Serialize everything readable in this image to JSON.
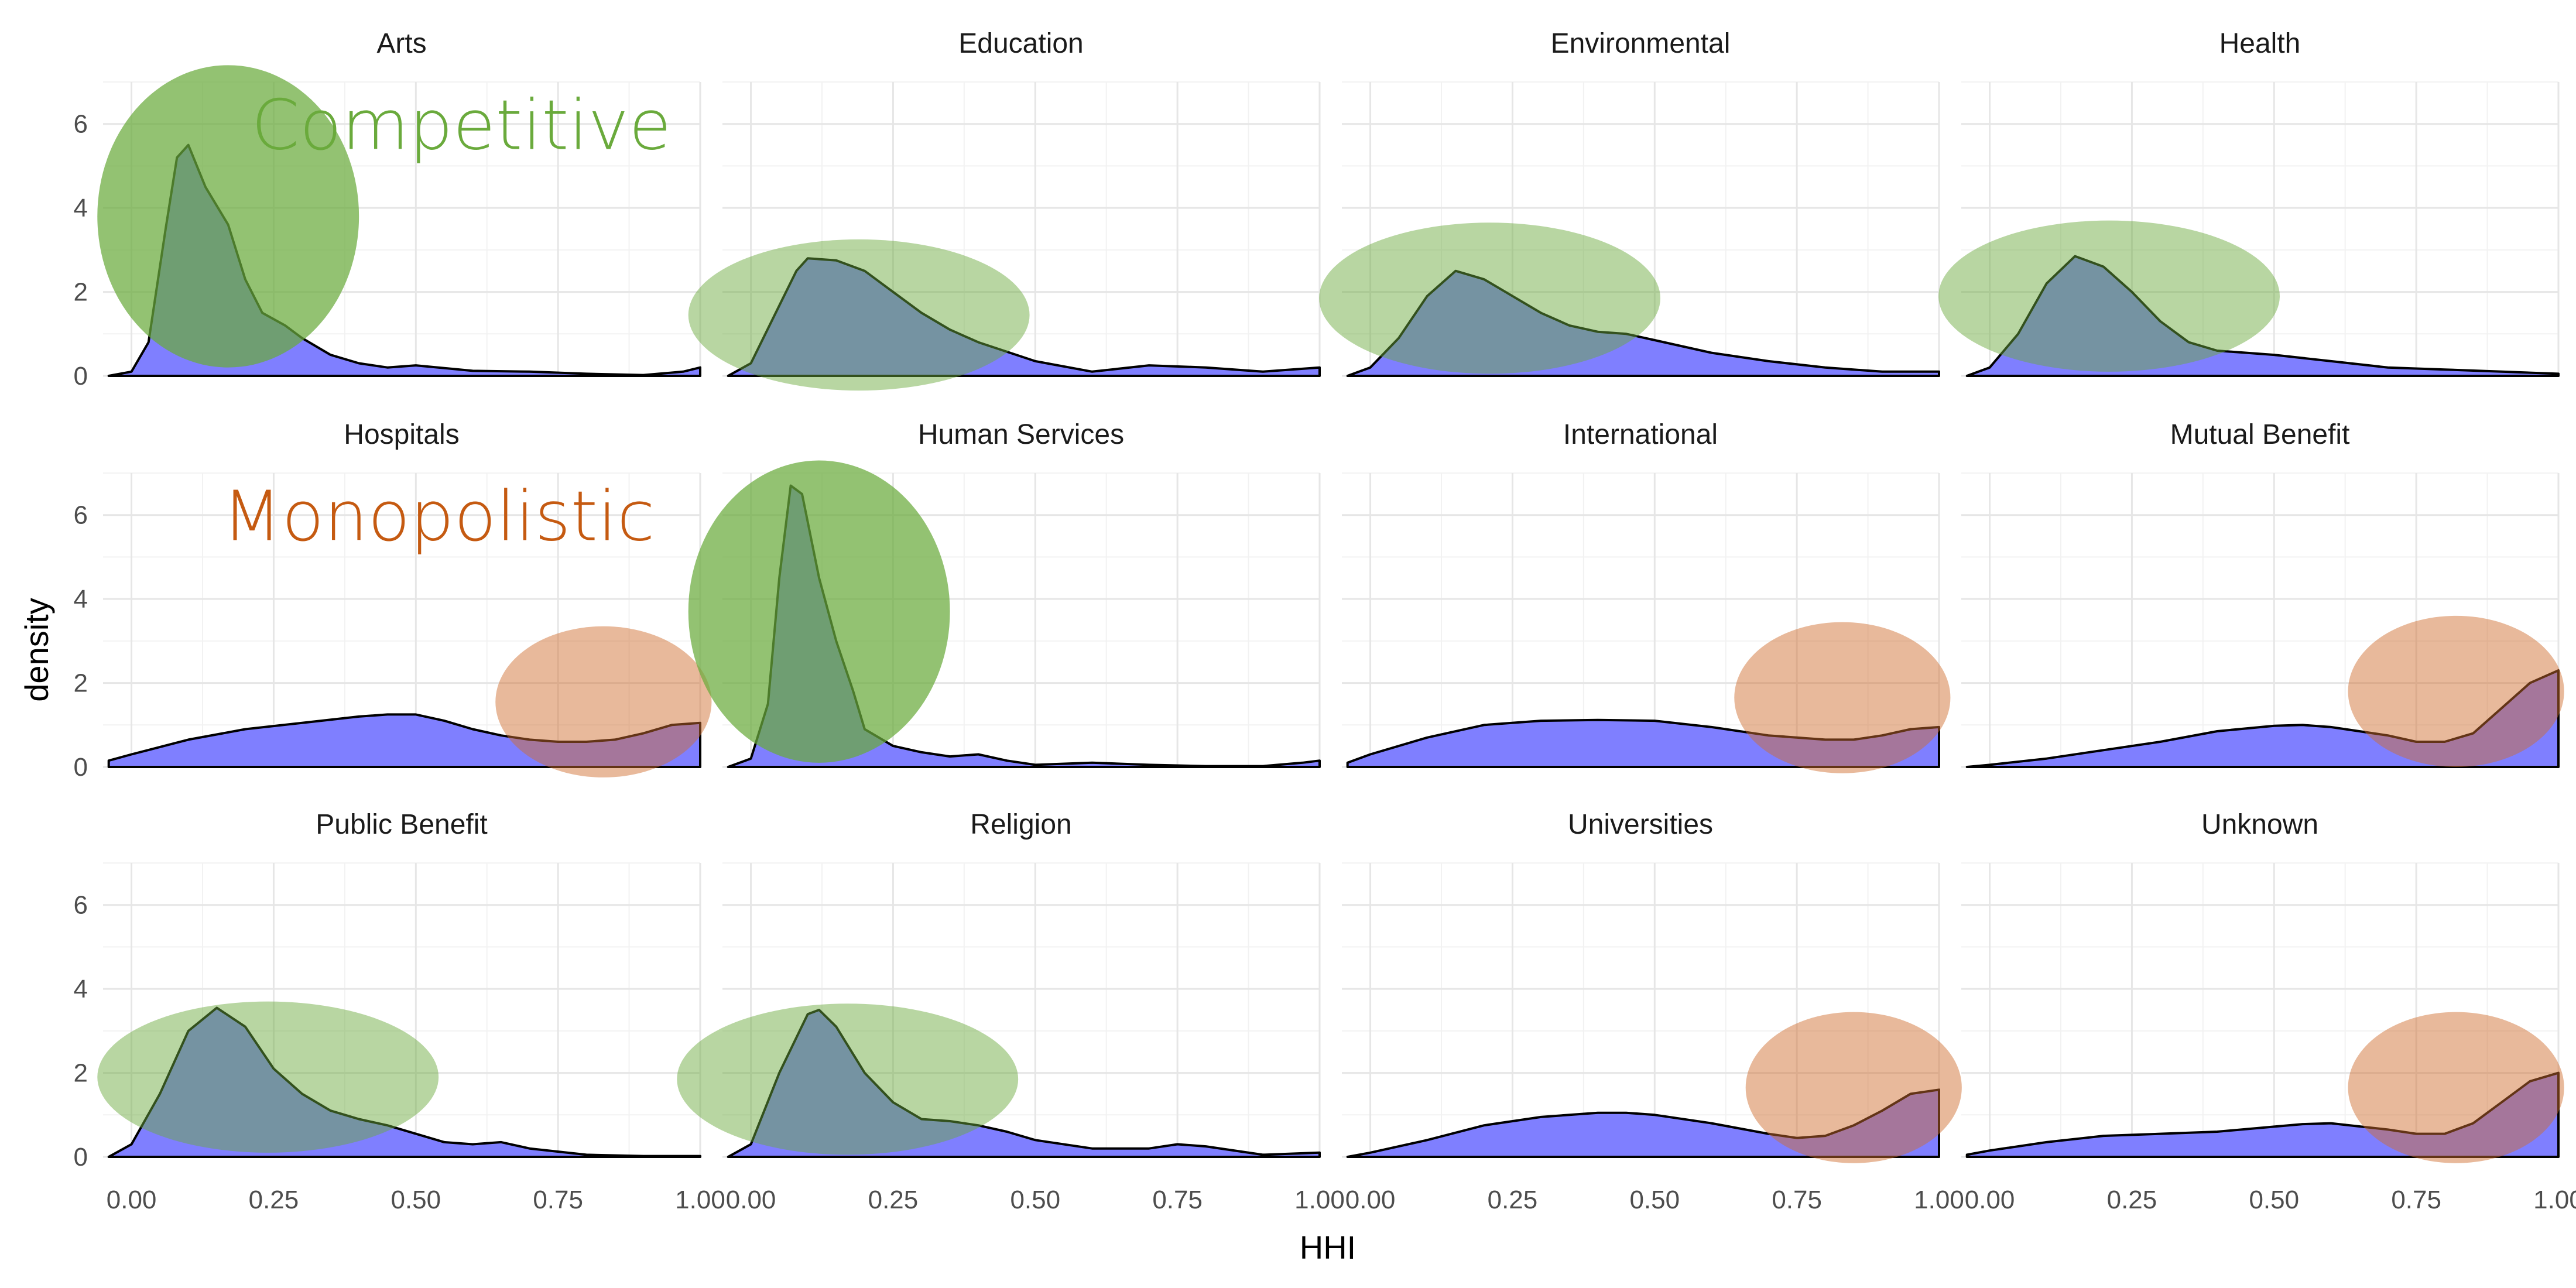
{
  "chart_data": {
    "type": "area",
    "chart_kind": "faceted density plot",
    "xlabel": "HHI",
    "ylabel": "density",
    "xlim": [
      -0.05,
      1.0
    ],
    "ylim": [
      0,
      7
    ],
    "x_ticks": [
      0,
      0.25,
      0.5,
      0.75,
      1.0
    ],
    "x_tick_labels": [
      "0.00",
      "0.25",
      "0.50",
      "0.75",
      "1.00"
    ],
    "y_ticks": [
      0,
      2,
      4,
      6
    ],
    "y_tick_labels": [
      "0",
      "2",
      "4",
      "6"
    ],
    "grid": true,
    "fill_color": "#7f7fff",
    "line_color": "#000000",
    "facets": [
      {
        "name": "Arts",
        "x": [
          -0.04,
          0.0,
          0.03,
          0.06,
          0.08,
          0.1,
          0.13,
          0.17,
          0.2,
          0.23,
          0.27,
          0.3,
          0.35,
          0.4,
          0.45,
          0.5,
          0.6,
          0.7,
          0.8,
          0.9,
          0.97,
          1.0
        ],
        "y": [
          0,
          0.1,
          0.8,
          3.5,
          5.2,
          5.5,
          4.5,
          3.6,
          2.3,
          1.5,
          1.2,
          0.9,
          0.5,
          0.3,
          0.2,
          0.25,
          0.12,
          0.1,
          0.05,
          0.02,
          0.1,
          0.2
        ]
      },
      {
        "name": "Education",
        "x": [
          -0.04,
          0.0,
          0.04,
          0.08,
          0.1,
          0.15,
          0.2,
          0.25,
          0.3,
          0.35,
          0.4,
          0.5,
          0.6,
          0.7,
          0.8,
          0.9,
          1.0
        ],
        "y": [
          0,
          0.3,
          1.4,
          2.5,
          2.8,
          2.75,
          2.5,
          2.0,
          1.5,
          1.1,
          0.8,
          0.35,
          0.1,
          0.25,
          0.2,
          0.1,
          0.2
        ]
      },
      {
        "name": "Environmental",
        "x": [
          -0.04,
          0.0,
          0.05,
          0.1,
          0.15,
          0.2,
          0.25,
          0.3,
          0.35,
          0.4,
          0.45,
          0.5,
          0.6,
          0.7,
          0.8,
          0.9,
          1.0
        ],
        "y": [
          0,
          0.2,
          0.9,
          1.9,
          2.5,
          2.3,
          1.9,
          1.5,
          1.2,
          1.05,
          1.0,
          0.85,
          0.55,
          0.35,
          0.2,
          0.1,
          0.1
        ]
      },
      {
        "name": "Health",
        "x": [
          -0.04,
          0.0,
          0.05,
          0.1,
          0.15,
          0.2,
          0.25,
          0.3,
          0.35,
          0.4,
          0.5,
          0.6,
          0.7,
          0.8,
          0.9,
          1.0
        ],
        "y": [
          0,
          0.2,
          1.0,
          2.2,
          2.85,
          2.6,
          2.0,
          1.3,
          0.8,
          0.6,
          0.5,
          0.35,
          0.2,
          0.15,
          0.1,
          0.05
        ]
      },
      {
        "name": "Hospitals",
        "x": [
          -0.04,
          0.0,
          0.1,
          0.2,
          0.3,
          0.4,
          0.45,
          0.5,
          0.55,
          0.6,
          0.65,
          0.7,
          0.75,
          0.8,
          0.85,
          0.9,
          0.95,
          1.0
        ],
        "y": [
          0.15,
          0.3,
          0.65,
          0.9,
          1.05,
          1.2,
          1.25,
          1.25,
          1.1,
          0.9,
          0.75,
          0.65,
          0.6,
          0.6,
          0.65,
          0.8,
          1.0,
          1.05
        ]
      },
      {
        "name": "Human Services",
        "x": [
          -0.04,
          0.0,
          0.03,
          0.05,
          0.07,
          0.09,
          0.12,
          0.15,
          0.18,
          0.2,
          0.25,
          0.3,
          0.35,
          0.4,
          0.45,
          0.5,
          0.6,
          0.7,
          0.8,
          0.9,
          0.97,
          1.0
        ],
        "y": [
          0,
          0.2,
          1.5,
          4.5,
          6.7,
          6.5,
          4.5,
          3.0,
          1.8,
          0.9,
          0.5,
          0.35,
          0.25,
          0.3,
          0.15,
          0.05,
          0.1,
          0.05,
          0.02,
          0.02,
          0.1,
          0.15
        ]
      },
      {
        "name": "International",
        "x": [
          -0.04,
          0.0,
          0.1,
          0.2,
          0.3,
          0.4,
          0.5,
          0.6,
          0.7,
          0.8,
          0.85,
          0.9,
          0.95,
          1.0
        ],
        "y": [
          0.1,
          0.3,
          0.7,
          1.0,
          1.1,
          1.12,
          1.1,
          0.95,
          0.75,
          0.65,
          0.65,
          0.75,
          0.9,
          0.95
        ]
      },
      {
        "name": "Mutual Benefit",
        "x": [
          -0.04,
          0.0,
          0.1,
          0.2,
          0.3,
          0.4,
          0.5,
          0.55,
          0.6,
          0.7,
          0.75,
          0.8,
          0.85,
          0.9,
          0.95,
          1.0
        ],
        "y": [
          0,
          0.05,
          0.2,
          0.4,
          0.6,
          0.85,
          0.98,
          1.0,
          0.95,
          0.75,
          0.6,
          0.6,
          0.8,
          1.4,
          2.0,
          2.3
        ]
      },
      {
        "name": "Public Benefit",
        "x": [
          -0.04,
          0.0,
          0.05,
          0.1,
          0.15,
          0.2,
          0.25,
          0.3,
          0.35,
          0.4,
          0.45,
          0.5,
          0.55,
          0.6,
          0.65,
          0.7,
          0.8,
          0.9,
          1.0
        ],
        "y": [
          0,
          0.3,
          1.5,
          3.0,
          3.55,
          3.1,
          2.1,
          1.5,
          1.1,
          0.9,
          0.75,
          0.55,
          0.35,
          0.3,
          0.35,
          0.2,
          0.05,
          0.02,
          0.02
        ]
      },
      {
        "name": "Religion",
        "x": [
          -0.04,
          0.0,
          0.05,
          0.1,
          0.12,
          0.15,
          0.2,
          0.25,
          0.3,
          0.35,
          0.4,
          0.45,
          0.5,
          0.6,
          0.7,
          0.75,
          0.8,
          0.9,
          1.0
        ],
        "y": [
          0,
          0.3,
          2.0,
          3.4,
          3.5,
          3.1,
          2.0,
          1.3,
          0.9,
          0.85,
          0.75,
          0.6,
          0.4,
          0.2,
          0.2,
          0.3,
          0.25,
          0.05,
          0.1
        ]
      },
      {
        "name": "Universities",
        "x": [
          -0.04,
          0.0,
          0.1,
          0.2,
          0.3,
          0.4,
          0.45,
          0.5,
          0.6,
          0.7,
          0.75,
          0.8,
          0.85,
          0.9,
          0.95,
          1.0
        ],
        "y": [
          0,
          0.1,
          0.4,
          0.75,
          0.95,
          1.05,
          1.05,
          1.0,
          0.8,
          0.55,
          0.45,
          0.5,
          0.75,
          1.1,
          1.5,
          1.6
        ]
      },
      {
        "name": "Unknown",
        "x": [
          -0.04,
          0.0,
          0.1,
          0.2,
          0.3,
          0.4,
          0.5,
          0.55,
          0.6,
          0.7,
          0.75,
          0.8,
          0.85,
          0.9,
          0.95,
          1.0
        ],
        "y": [
          0.05,
          0.15,
          0.35,
          0.5,
          0.55,
          0.6,
          0.72,
          0.78,
          0.8,
          0.65,
          0.55,
          0.55,
          0.8,
          1.3,
          1.8,
          2.0
        ]
      }
    ],
    "highlights": [
      {
        "facet": "Arts",
        "type": "competitive",
        "cx": 0.17,
        "cy": 3.8,
        "rx": 0.23,
        "ry": 3.6
      },
      {
        "facet": "Education",
        "type": "competitive",
        "cx": 0.19,
        "cy": 1.45,
        "rx": 0.3,
        "ry": 1.8
      },
      {
        "facet": "Environmental",
        "type": "competitive",
        "cx": 0.21,
        "cy": 1.85,
        "rx": 0.3,
        "ry": 1.8
      },
      {
        "facet": "Health",
        "type": "competitive",
        "cx": 0.21,
        "cy": 1.9,
        "rx": 0.3,
        "ry": 1.8
      },
      {
        "facet": "Hospitals",
        "type": "monopolistic",
        "cx": 0.83,
        "cy": 1.55,
        "rx": 0.19,
        "ry": 1.8
      },
      {
        "facet": "Human Services",
        "type": "competitive",
        "cx": 0.12,
        "cy": 3.7,
        "rx": 0.23,
        "ry": 3.6
      },
      {
        "facet": "International",
        "type": "monopolistic",
        "cx": 0.83,
        "cy": 1.65,
        "rx": 0.19,
        "ry": 1.8
      },
      {
        "facet": "Mutual Benefit",
        "type": "monopolistic",
        "cx": 0.82,
        "cy": 1.8,
        "rx": 0.19,
        "ry": 1.8
      },
      {
        "facet": "Public Benefit",
        "type": "competitive",
        "cx": 0.24,
        "cy": 1.9,
        "rx": 0.3,
        "ry": 1.8
      },
      {
        "facet": "Religion",
        "type": "competitive",
        "cx": 0.17,
        "cy": 1.85,
        "rx": 0.3,
        "ry": 1.8
      },
      {
        "facet": "Universities",
        "type": "monopolistic",
        "cx": 0.85,
        "cy": 1.65,
        "rx": 0.19,
        "ry": 1.8
      },
      {
        "facet": "Unknown",
        "type": "monopolistic",
        "cx": 0.82,
        "cy": 1.65,
        "rx": 0.19,
        "ry": 1.8
      }
    ],
    "highlight_colors": {
      "competitive": "#6aaa3c",
      "monopolistic": "#cf6d2e"
    },
    "annotations": [
      {
        "text": "Competitive",
        "facet": "Arts",
        "x": 0.58,
        "y": 5.4,
        "color": "#6aaa3c"
      },
      {
        "text": "Monopolistic",
        "facet": "Hospitals",
        "x": 0.54,
        "y": 5.4,
        "color": "#c55a11"
      }
    ]
  }
}
